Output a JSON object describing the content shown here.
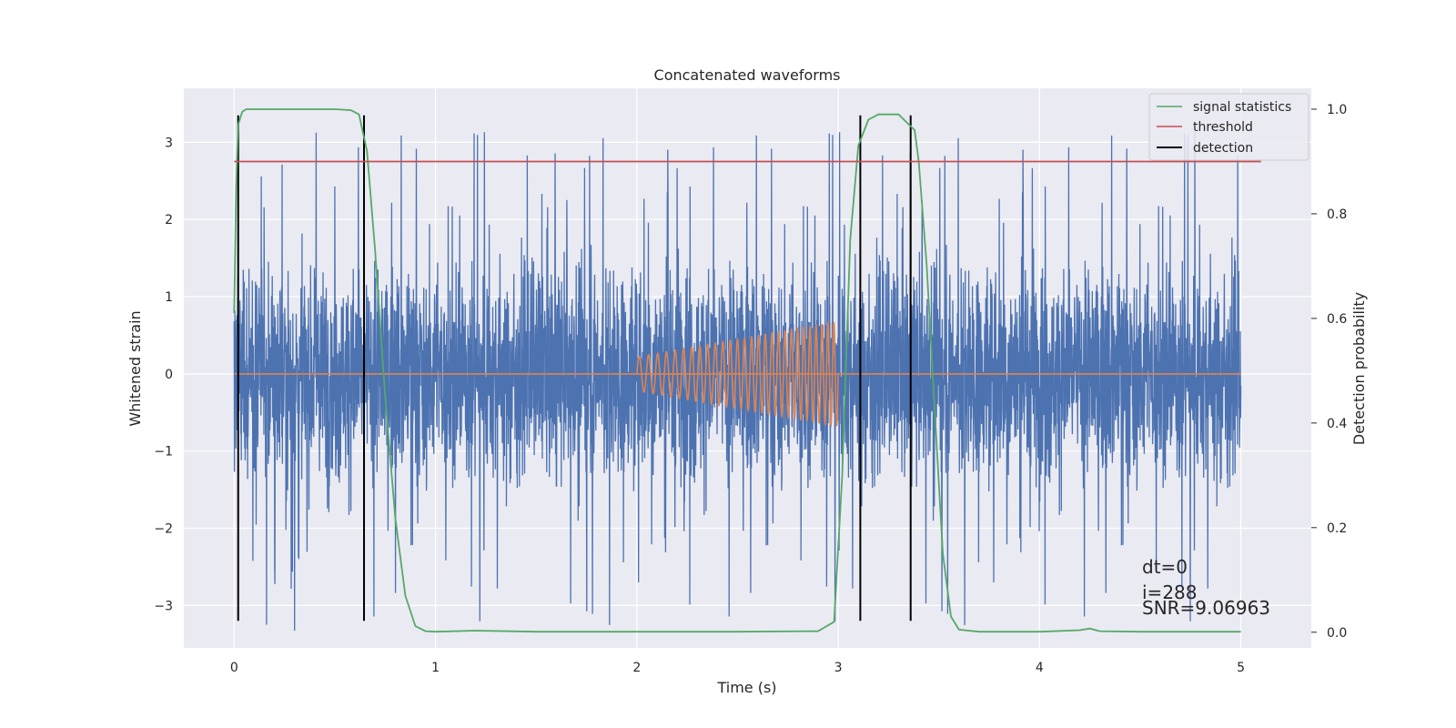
{
  "chart_data": {
    "type": "line",
    "title": "Concatenated waveforms",
    "xlabel": "Time (s)",
    "ylabel": "Whitened strain",
    "ylabel_right": "Detection probability",
    "xlim": [
      -0.25,
      5.35
    ],
    "ylim": [
      -3.55,
      3.7
    ],
    "ylim_right": [
      -0.03,
      1.04
    ],
    "xticks": [
      0,
      1,
      2,
      3,
      4,
      5
    ],
    "yticks": [
      -3,
      -2,
      -1,
      0,
      1,
      2,
      3
    ],
    "yticks_right": [
      0.0,
      0.2,
      0.4,
      0.6,
      0.8,
      1.0
    ],
    "xtick_labels": [
      "0",
      "1",
      "2",
      "3",
      "4",
      "5"
    ],
    "ytick_labels": [
      "−3",
      "−2",
      "−1",
      "0",
      "1",
      "2",
      "3"
    ],
    "ytick_right_labels": [
      "0.0",
      "0.2",
      "0.4",
      "0.6",
      "0.8",
      "1.0"
    ],
    "grid": true,
    "legend_position": "top-right",
    "legend": [
      "signal statistics",
      "threshold",
      "detection"
    ],
    "noise": {
      "x_range": [
        0,
        5
      ],
      "color": "#4c72b0",
      "typical_amplitude": 1.6,
      "peak_amplitude": 3.35
    },
    "injected_waveform": {
      "x_start": 2.0,
      "x_end": 3.0,
      "amplitude_start": 0.22,
      "amplitude_end": 0.68,
      "cycles": 28,
      "color": "#dd8452"
    },
    "series": [
      {
        "name": "signal statistics",
        "axis": "right",
        "color": "#55a868",
        "x": [
          0.0,
          0.01,
          0.02,
          0.04,
          0.06,
          0.1,
          0.3,
          0.5,
          0.58,
          0.62,
          0.66,
          0.7,
          0.75,
          0.8,
          0.85,
          0.9,
          0.95,
          1.0,
          1.2,
          1.5,
          2.0,
          2.5,
          2.9,
          2.98,
          3.02,
          3.06,
          3.1,
          3.15,
          3.2,
          3.3,
          3.38,
          3.4,
          3.44,
          3.48,
          3.52,
          3.56,
          3.6,
          3.7,
          4.0,
          4.2,
          4.25,
          4.3,
          4.5,
          5.0
        ],
        "y": [
          0.61,
          0.85,
          0.97,
          0.995,
          1.0,
          1.0,
          1.0,
          1.0,
          0.998,
          0.99,
          0.92,
          0.73,
          0.45,
          0.22,
          0.07,
          0.012,
          0.002,
          0.001,
          0.003,
          0.001,
          0.001,
          0.001,
          0.002,
          0.02,
          0.3,
          0.75,
          0.93,
          0.98,
          0.99,
          0.99,
          0.96,
          0.9,
          0.7,
          0.42,
          0.15,
          0.03,
          0.005,
          0.001,
          0.001,
          0.004,
          0.007,
          0.002,
          0.001,
          0.001
        ]
      },
      {
        "name": "threshold",
        "axis": "right",
        "color": "#c44e52",
        "x": [
          0.0,
          5.1
        ],
        "y": [
          0.9,
          0.9
        ]
      },
      {
        "name": "detection",
        "axis": "left",
        "color": "#000000",
        "x": [
          0.02,
          0.645,
          3.11,
          3.36
        ],
        "ymin": -3.2,
        "ymax": 3.35
      }
    ],
    "annotations": [
      "dt=0",
      "i=288",
      "SNR=9.06963"
    ]
  }
}
